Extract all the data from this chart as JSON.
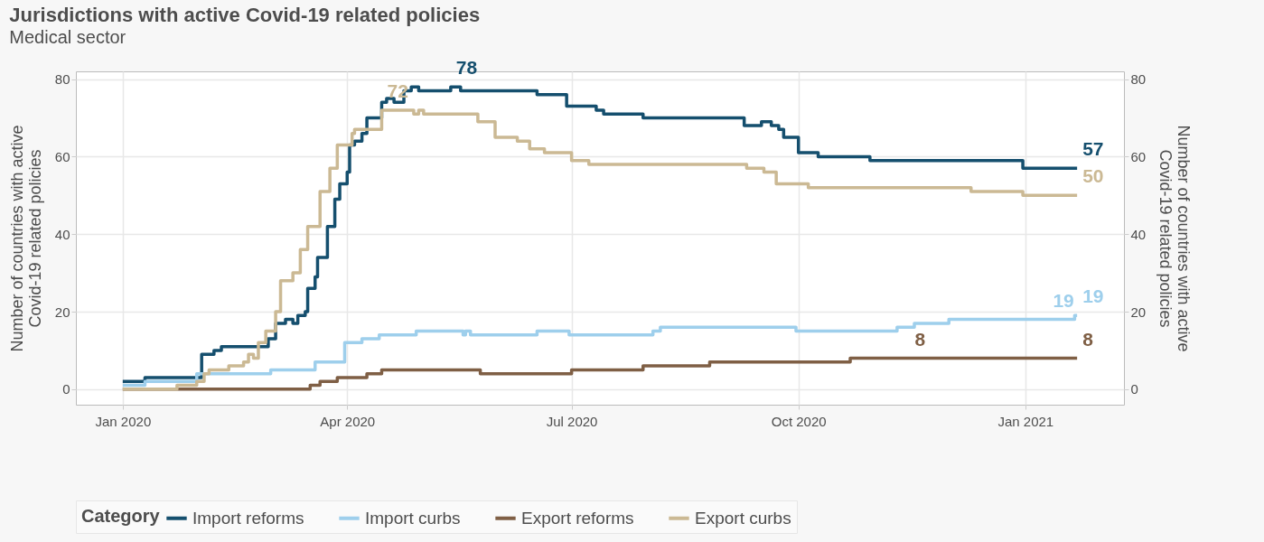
{
  "chart_data": {
    "type": "step",
    "title": "Jurisdictions with active Covid-19 related policies",
    "subtitle": "Medical sector",
    "ylabel": "Number of countries with active Covid-19 related policies",
    "y2label": "Number of countries with active Covid-19 related policies",
    "legend_title": "Category",
    "legend": "bottom",
    "grid": true,
    "xlim": [
      "2019-12-13",
      "2021-02-10"
    ],
    "xticks": [
      {
        "value": "2020-01-01",
        "label": "Jan 2020"
      },
      {
        "value": "2020-04-01",
        "label": "Apr 2020"
      },
      {
        "value": "2020-07-01",
        "label": "Jul 2020"
      },
      {
        "value": "2020-10-01",
        "label": "Oct 2020"
      },
      {
        "value": "2021-01-01",
        "label": "Jan 2021"
      }
    ],
    "ylim": [
      -4,
      82
    ],
    "yticks": [
      0,
      20,
      40,
      60,
      80
    ],
    "y2lim": [
      -4,
      82
    ],
    "y2ticks": [
      0,
      20,
      40,
      60,
      80
    ],
    "series": [
      {
        "name": "Import reforms",
        "color": "#154f6e",
        "x": [
          "2020-01-01",
          "2020-01-10",
          "2020-01-30",
          "2020-02-02",
          "2020-02-07",
          "2020-02-10",
          "2020-02-25",
          "2020-02-29",
          "2020-03-03",
          "2020-03-07",
          "2020-03-10",
          "2020-03-12",
          "2020-03-15",
          "2020-03-16",
          "2020-03-19",
          "2020-03-20",
          "2020-03-24",
          "2020-03-27",
          "2020-03-29",
          "2020-04-01",
          "2020-04-02",
          "2020-04-04",
          "2020-04-07",
          "2020-04-09",
          "2020-04-15",
          "2020-04-17",
          "2020-04-20",
          "2020-04-24",
          "2020-04-27",
          "2020-04-30",
          "2020-05-13",
          "2020-05-17",
          "2020-06-17",
          "2020-06-29",
          "2020-07-11",
          "2020-07-14",
          "2020-07-30",
          "2020-09-09",
          "2020-09-16",
          "2020-09-20",
          "2020-09-23",
          "2020-09-25",
          "2020-10-01",
          "2020-10-09",
          "2020-10-30",
          "2020-12-31",
          "2021-01-22"
        ],
        "values": [
          2,
          3,
          3,
          9,
          10,
          11,
          11,
          13,
          17,
          18,
          17,
          19,
          20,
          26,
          29,
          34,
          42,
          49,
          53,
          56,
          63,
          64,
          66,
          70,
          74,
          75,
          74,
          77,
          78,
          77,
          78,
          77,
          76,
          73,
          72,
          71,
          70,
          68,
          69,
          68,
          67,
          65,
          61,
          60,
          59,
          57,
          57
        ]
      },
      {
        "name": "Import curbs",
        "color": "#9ecfec",
        "x": [
          "2020-01-01",
          "2020-01-10",
          "2020-01-31",
          "2020-03-01",
          "2020-03-19",
          "2020-03-31",
          "2020-04-07",
          "2020-04-14",
          "2020-04-29",
          "2020-05-18",
          "2020-05-19",
          "2020-05-21",
          "2020-06-17",
          "2020-06-30",
          "2020-08-03",
          "2020-08-06",
          "2020-09-30",
          "2020-11-10",
          "2020-11-17",
          "2020-12-01",
          "2021-01-21",
          "2021-01-22"
        ],
        "values": [
          1,
          2,
          4,
          5,
          7,
          12,
          13,
          14,
          15,
          14,
          15,
          14,
          15,
          14,
          15,
          16,
          15,
          16,
          17,
          18,
          19,
          19
        ]
      },
      {
        "name": "Export reforms",
        "color": "#7f5f45",
        "x": [
          "2020-01-01",
          "2020-03-17",
          "2020-03-21",
          "2020-03-28",
          "2020-04-09",
          "2020-04-15",
          "2020-05-25",
          "2020-07-01",
          "2020-07-30",
          "2020-08-26",
          "2020-10-22",
          "2021-01-22"
        ],
        "values": [
          0,
          1,
          2,
          3,
          4,
          5,
          4,
          5,
          6,
          7,
          8,
          8
        ]
      },
      {
        "name": "Export curbs",
        "color": "#cbb994",
        "x": [
          "2020-01-01",
          "2020-01-23",
          "2020-01-31",
          "2020-02-03",
          "2020-02-05",
          "2020-02-13",
          "2020-02-19",
          "2020-02-21",
          "2020-02-23",
          "2020-02-25",
          "2020-02-28",
          "2020-03-03",
          "2020-03-05",
          "2020-03-10",
          "2020-03-13",
          "2020-03-16",
          "2020-03-21",
          "2020-03-25",
          "2020-03-28",
          "2020-03-31",
          "2020-04-03",
          "2020-04-04",
          "2020-04-15",
          "2020-04-28",
          "2020-04-30",
          "2020-05-02",
          "2020-05-24",
          "2020-05-31",
          "2020-06-09",
          "2020-06-14",
          "2020-06-20",
          "2020-07-01",
          "2020-07-08",
          "2020-09-10",
          "2020-09-17",
          "2020-09-22",
          "2020-10-05",
          "2020-12-10",
          "2020-12-31",
          "2021-01-22"
        ],
        "values": [
          0,
          1,
          2,
          4,
          5,
          6,
          7,
          9,
          8,
          12,
          15,
          20,
          28,
          30,
          36,
          42,
          51,
          57,
          63,
          63,
          66,
          67,
          72,
          71,
          72,
          71,
          69,
          65,
          64,
          62,
          61,
          59,
          58,
          57,
          56,
          53,
          52,
          51,
          50,
          50
        ]
      }
    ],
    "annotations": [
      {
        "text": "72",
        "x": "2020-04-15",
        "y": 72
      },
      {
        "text": "78",
        "x": "2020-05-13",
        "y": 78
      },
      {
        "text": "57",
        "x": "2021-01-22",
        "y": 57
      },
      {
        "text": "50",
        "x": "2021-01-22",
        "y": 50
      },
      {
        "text": "19",
        "x": "2021-01-10",
        "y": 18
      },
      {
        "text": "19",
        "x": "2021-01-22",
        "y": 19
      },
      {
        "text": "8",
        "x": "2020-11-15",
        "y": 8
      },
      {
        "text": "8",
        "x": "2021-01-22",
        "y": 8
      }
    ]
  }
}
